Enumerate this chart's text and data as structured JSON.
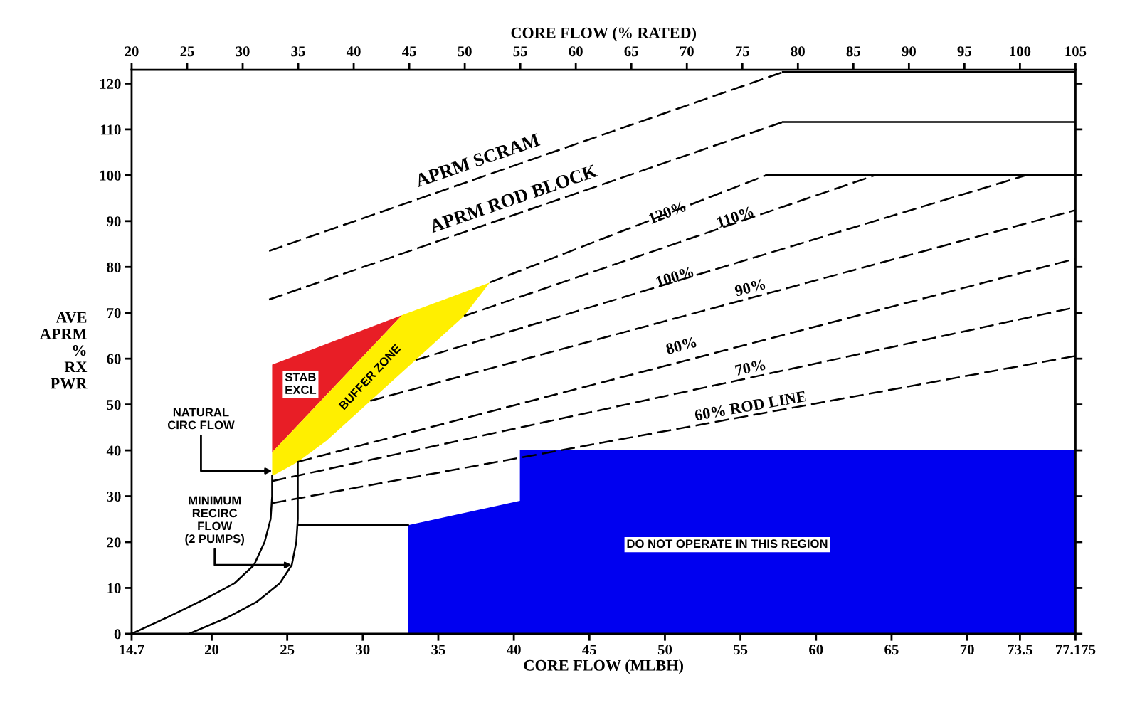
{
  "chart_data": {
    "type": "line",
    "xlabel": "CORE FLOW (MLBH)",
    "x2label": "CORE FLOW (% RATED)",
    "ylabel": "AVE\nAPRM\n%\nRX\nPWR",
    "xlim": [
      14.7,
      77.175
    ],
    "xticks": [
      14.7,
      20,
      25,
      30,
      35,
      40,
      45,
      50,
      55,
      60,
      65,
      70,
      73.5,
      77.175
    ],
    "x2lim": [
      20,
      105
    ],
    "x2ticks": [
      20,
      25,
      30,
      35,
      40,
      45,
      50,
      55,
      60,
      65,
      70,
      75,
      80,
      85,
      90,
      95,
      100,
      105
    ],
    "ylim": [
      0,
      123
    ],
    "yticks": [
      0,
      10,
      20,
      30,
      40,
      50,
      60,
      70,
      80,
      90,
      100,
      110,
      120
    ],
    "grid": false,
    "series": [
      {
        "type": "area",
        "color": "#0000f0",
        "x": [
          33.0,
          40.4,
          40.4,
          77.175
        ],
        "values": [
          23.7,
          29,
          40,
          40
        ]
      },
      {
        "type": "area",
        "color": "#e81e26",
        "x": [
          24.0,
          24.0,
          32.6,
          24.0
        ],
        "values": [
          39.6,
          58.7,
          69.5,
          39.6
        ]
      },
      {
        "type": "area",
        "color": "#ffef00",
        "x": [
          24.0,
          24.0,
          32.6,
          38.4,
          36.7,
          27.6,
          25.7,
          24.0
        ],
        "values": [
          34.4,
          39.6,
          69.5,
          76.6,
          69.3,
          42.1,
          37.5,
          34.4
        ]
      },
      {
        "color": "#000000",
        "line_style": "dashed",
        "x": [
          23.8,
          57.8
        ],
        "values": [
          83.5,
          122.5
        ]
      },
      {
        "color": "#000000",
        "line_style": "solid",
        "x": [
          57.8,
          77.175
        ],
        "values": [
          122.5,
          122.5
        ]
      },
      {
        "color": "#000000",
        "line_style": "dashed",
        "x": [
          23.8,
          57.8
        ],
        "values": [
          72.9,
          111.6
        ]
      },
      {
        "color": "#000000",
        "line_style": "solid",
        "x": [
          57.8,
          77.175
        ],
        "values": [
          111.6,
          111.6
        ]
      },
      {
        "color": "#000000",
        "line_style": "dashed",
        "x": [
          38.4,
          56.7
        ],
        "values": [
          76.6,
          100
        ]
      },
      {
        "color": "#000000",
        "line_style": "solid",
        "x": [
          56.7,
          77.175
        ],
        "values": [
          100,
          100
        ]
      },
      {
        "color": "#000000",
        "line_style": "dashed",
        "x": [
          36.7,
          63.9
        ],
        "values": [
          69.3,
          100
        ]
      },
      {
        "color": "#000000",
        "line_style": "dashed",
        "x": [
          33.5,
          73.9
        ],
        "values": [
          59.7,
          100
        ]
      },
      {
        "color": "#000000",
        "line_style": "dashed",
        "x": [
          30.5,
          77.175
        ],
        "values": [
          50.8,
          92.4
        ]
      },
      {
        "color": "#000000",
        "line_style": "dashed",
        "x": [
          25.7,
          77.175
        ],
        "values": [
          37.5,
          81.8
        ]
      },
      {
        "color": "#000000",
        "line_style": "dashed",
        "x": [
          24.0,
          77.175
        ],
        "values": [
          33.3,
          71.2
        ]
      },
      {
        "color": "#000000",
        "line_style": "dashed",
        "x": [
          24.0,
          77.175
        ],
        "values": [
          28.5,
          60.6
        ]
      },
      {
        "color": "#000000",
        "line_style": "solid",
        "x": [
          14.7,
          17,
          19.5,
          21.5,
          22.8,
          23.5,
          23.9,
          24.0,
          24.0
        ],
        "values": [
          0,
          3.5,
          7.5,
          11,
          15,
          20,
          25,
          30,
          34.4
        ]
      },
      {
        "color": "#000000",
        "line_style": "solid",
        "x": [
          18.5,
          21,
          23,
          24.5,
          25.3,
          25.6,
          25.7,
          25.7
        ],
        "values": [
          0,
          3.5,
          7,
          11,
          15,
          20,
          25,
          37.5
        ]
      },
      {
        "color": "#000000",
        "line_style": "solid",
        "x": [
          25.7,
          33.0
        ],
        "values": [
          23.7,
          23.7
        ]
      }
    ],
    "annotations": [
      "APRM SCRAM",
      "APRM ROD BLOCK",
      "120%",
      "110%",
      "100%",
      "90%",
      "80%",
      "70%",
      "60% ROD LINE",
      "STAB\nEXCL",
      "BUFFER ZONE",
      "DO NOT OPERATE IN THIS REGION",
      {
        "text": "NATURAL\nCIRC FLOW",
        "x": 24.0,
        "y": 35.5
      },
      {
        "text": "MINIMUM\nRECIRC\nFLOW\n(2 PUMPS)",
        "x": 25.3,
        "y": 15
      }
    ]
  }
}
